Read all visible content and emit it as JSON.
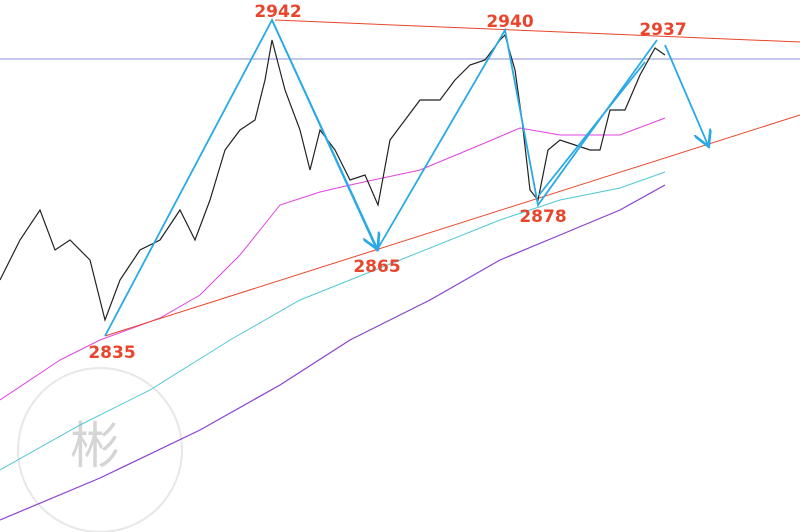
{
  "chart_data": {
    "type": "annotation",
    "pivots": [
      2835,
      2942,
      2865,
      2940,
      2878,
      2937
    ],
    "label_color": "#e8452c",
    "watermark": "彬"
  }
}
